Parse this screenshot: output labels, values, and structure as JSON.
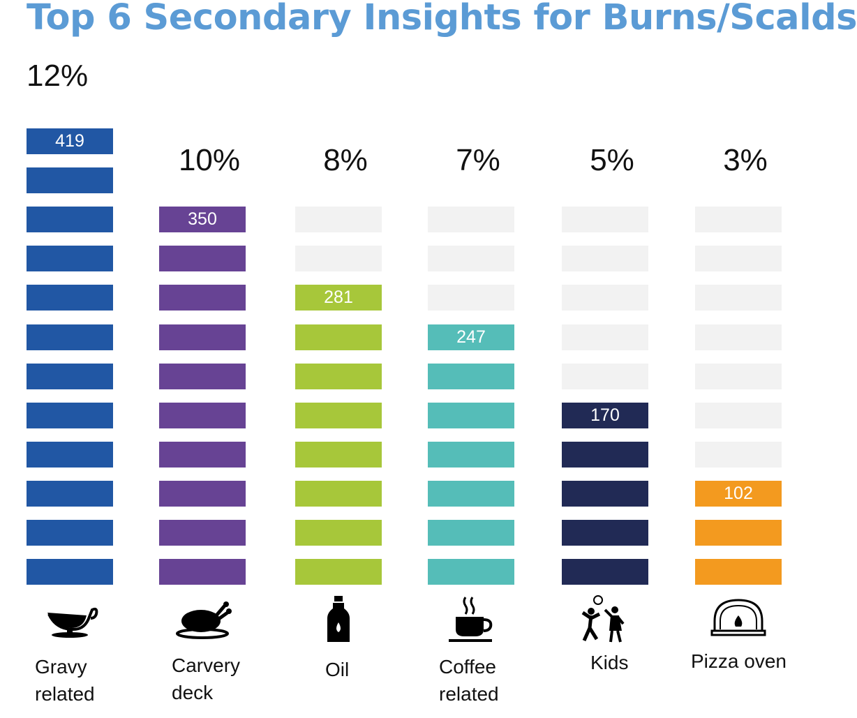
{
  "title": "Top 6 Secondary Insights for Burns/Scalds",
  "chart_data": {
    "type": "bar",
    "title": "Top 6 Secondary Insights for Burns/Scalds",
    "empty_block_color": "#f2f2f2",
    "categories": [
      {
        "label_lines": [
          "Gravy",
          "related"
        ],
        "percent": "12%",
        "value": "419",
        "blocks_filled": 12,
        "color": "#2157a4",
        "icon": "gravy-boat-icon"
      },
      {
        "label_lines": [
          "Carvery",
          "deck"
        ],
        "percent": "10%",
        "value": "350",
        "blocks_filled": 10,
        "color": "#674394",
        "icon": "roast-turkey-icon"
      },
      {
        "label_lines": [
          "Oil"
        ],
        "percent": "8%",
        "value": "281",
        "blocks_filled": 8,
        "color": "#a7c73a",
        "icon": "oil-bottle-icon"
      },
      {
        "label_lines": [
          "Coffee",
          "related"
        ],
        "percent": "7%",
        "value": "247",
        "blocks_filled": 7,
        "color": "#55bdb8",
        "icon": "coffee-cup-icon"
      },
      {
        "label_lines": [
          "Kids"
        ],
        "percent": "5%",
        "value": "170",
        "blocks_filled": 5,
        "color": "#212a55",
        "icon": "kids-playing-icon"
      },
      {
        "label_lines": [
          "Pizza oven"
        ],
        "percent": "3%",
        "value": "102",
        "blocks_filled": 3,
        "color": "#f39a1f",
        "icon": "pizza-oven-icon"
      }
    ]
  }
}
